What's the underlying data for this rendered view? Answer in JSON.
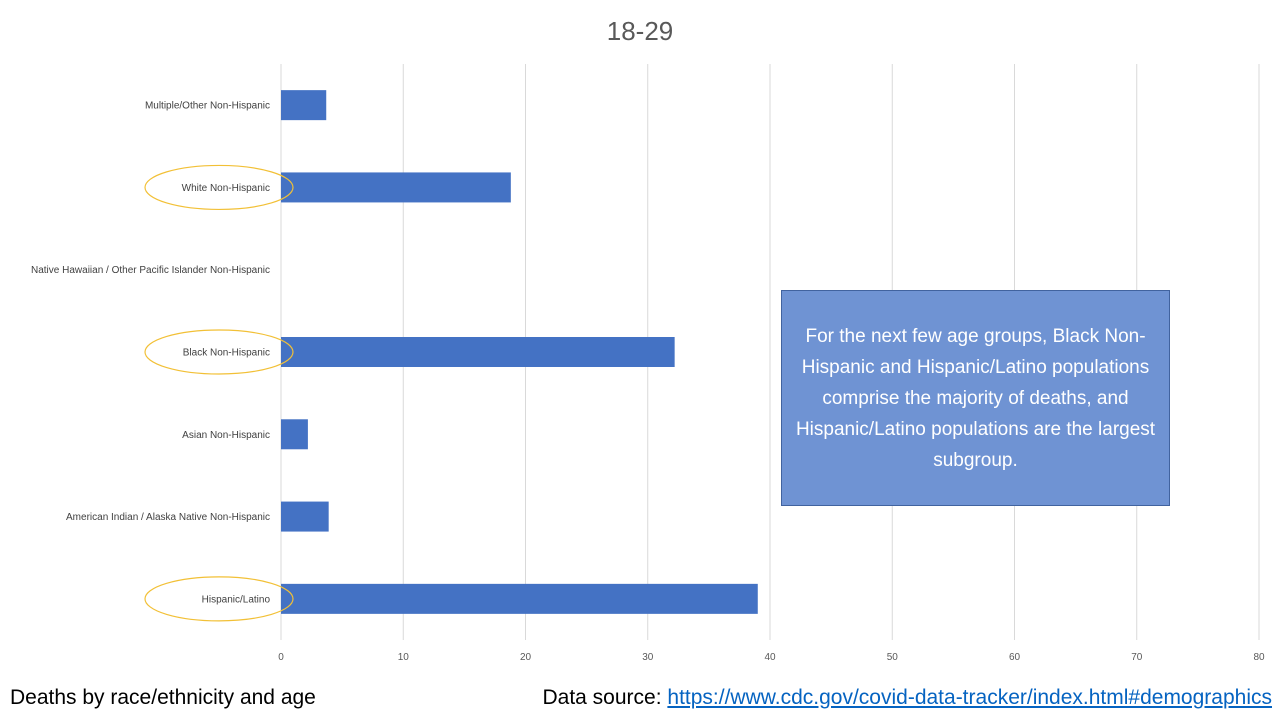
{
  "chart_data": {
    "type": "bar",
    "orientation": "horizontal",
    "title": "18-29",
    "categories": [
      "Multiple/Other Non-Hispanic",
      "White Non-Hispanic",
      "Native Hawaiian / Other Pacific Islander Non-Hispanic",
      "Black Non-Hispanic",
      "Asian Non-Hispanic",
      "American Indian / Alaska Native Non-Hispanic",
      "Hispanic/Latino"
    ],
    "values": [
      3.7,
      18.8,
      0,
      32.2,
      2.2,
      3.9,
      39
    ],
    "highlighted": [
      "White Non-Hispanic",
      "Black Non-Hispanic",
      "Hispanic/Latino"
    ],
    "xlim": [
      0,
      80
    ],
    "xticks": [
      0,
      10,
      20,
      30,
      40,
      50,
      60,
      70,
      80
    ],
    "xlabel": "",
    "ylabel": "",
    "grid": "vertical",
    "bar_color": "#4472c4",
    "highlight_color": "#f2c036"
  },
  "annotation": {
    "text": "For the next few age groups, Black Non-Hispanic and Hispanic/Latino populations comprise the majority of deaths, and Hispanic/Latino populations are the largest subgroup."
  },
  "footer": {
    "left": "Deaths by race/ethnicity and age",
    "source_label": "Data source:",
    "source_link": "https://www.cdc.gov/covid-data-tracker/index.html#demographics"
  }
}
